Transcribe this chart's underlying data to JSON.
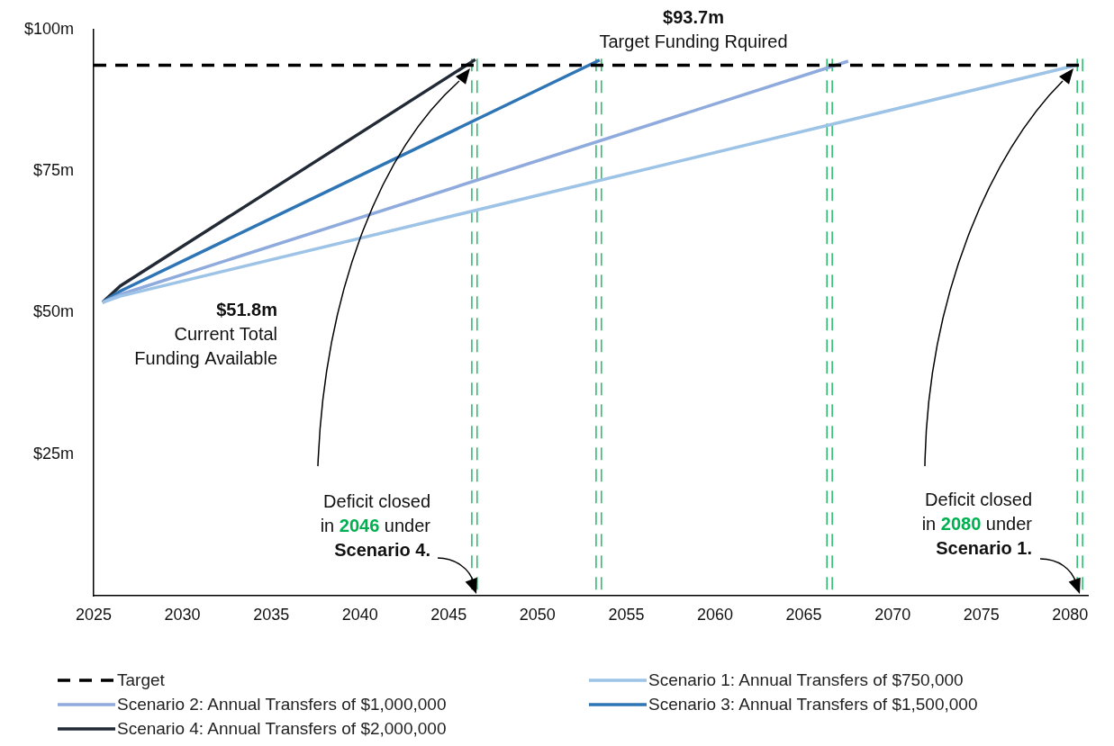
{
  "chart_data": {
    "type": "line",
    "xlim": [
      2025,
      2081
    ],
    "ylim": [
      0,
      100
    ],
    "xticks": [
      2025,
      2030,
      2035,
      2040,
      2045,
      2050,
      2055,
      2060,
      2065,
      2070,
      2075,
      2080
    ],
    "yticks": [
      {
        "value": 25,
        "label": "$25m"
      },
      {
        "value": 50,
        "label": "$50m"
      },
      {
        "value": 75,
        "label": "$75m"
      },
      {
        "value": 100,
        "label": "$100m"
      }
    ],
    "grid": false,
    "legend": "bottom left",
    "series": [
      {
        "name": "Target",
        "color": "#000000",
        "line_style": "dashed",
        "x": [
          2025,
          2080.5
        ],
        "values": [
          93.7,
          93.7
        ]
      },
      {
        "name": "Scenario 1: Annual Transfers of $750,000",
        "color": "#9dc3e6",
        "x": [
          2025.5,
          2026.5,
          2080.5
        ],
        "values": [
          51.8,
          52.9,
          93.8
        ]
      },
      {
        "name": "Scenario 2: Annual Transfers of $1,000,000",
        "color": "#8faadc",
        "x": [
          2025.5,
          2026.5,
          2067.5
        ],
        "values": [
          51.8,
          53.2,
          94.4
        ]
      },
      {
        "name": "Scenario 3: Annual Transfers of $1,500,000",
        "color": "#2e75b6",
        "x": [
          2025.5,
          2026.5,
          2053.5
        ],
        "values": [
          51.8,
          53.8,
          94.6
        ]
      },
      {
        "name": "Scenario 4: Annual Transfers of $2,000,000",
        "color": "#222a35",
        "x": [
          2025.5,
          2026.5,
          2046.5
        ],
        "values": [
          51.8,
          54.7,
          94.7
        ]
      }
    ],
    "ref_lines": [
      {
        "axis": "x",
        "value": 2046.3,
        "color": "#00b050",
        "line_style": "dashed"
      },
      {
        "axis": "x",
        "value": 2046.6,
        "color": "#00b050",
        "line_style": "dashed"
      },
      {
        "axis": "x",
        "value": 2053.3,
        "color": "#00b050",
        "line_style": "dashed"
      },
      {
        "axis": "x",
        "value": 2053.6,
        "color": "#00b050",
        "line_style": "dashed"
      },
      {
        "axis": "x",
        "value": 2066.3,
        "color": "#00b050",
        "line_style": "dashed"
      },
      {
        "axis": "x",
        "value": 2066.6,
        "color": "#00b050",
        "line_style": "dashed"
      },
      {
        "axis": "x",
        "value": 2080.4,
        "color": "#00b050",
        "line_style": "dashed"
      },
      {
        "axis": "x",
        "value": 2080.7,
        "color": "#00b050",
        "line_style": "dashed"
      }
    ],
    "annotations": [
      "$93.7m\nTarget Funding Rquired",
      "$51.8m\nCurrent Total\nFunding Available",
      "Deficit closed\nin 2046 under\nScenario 4.",
      "Deficit closed\nin 2080 under\nScenario 1."
    ]
  }
}
